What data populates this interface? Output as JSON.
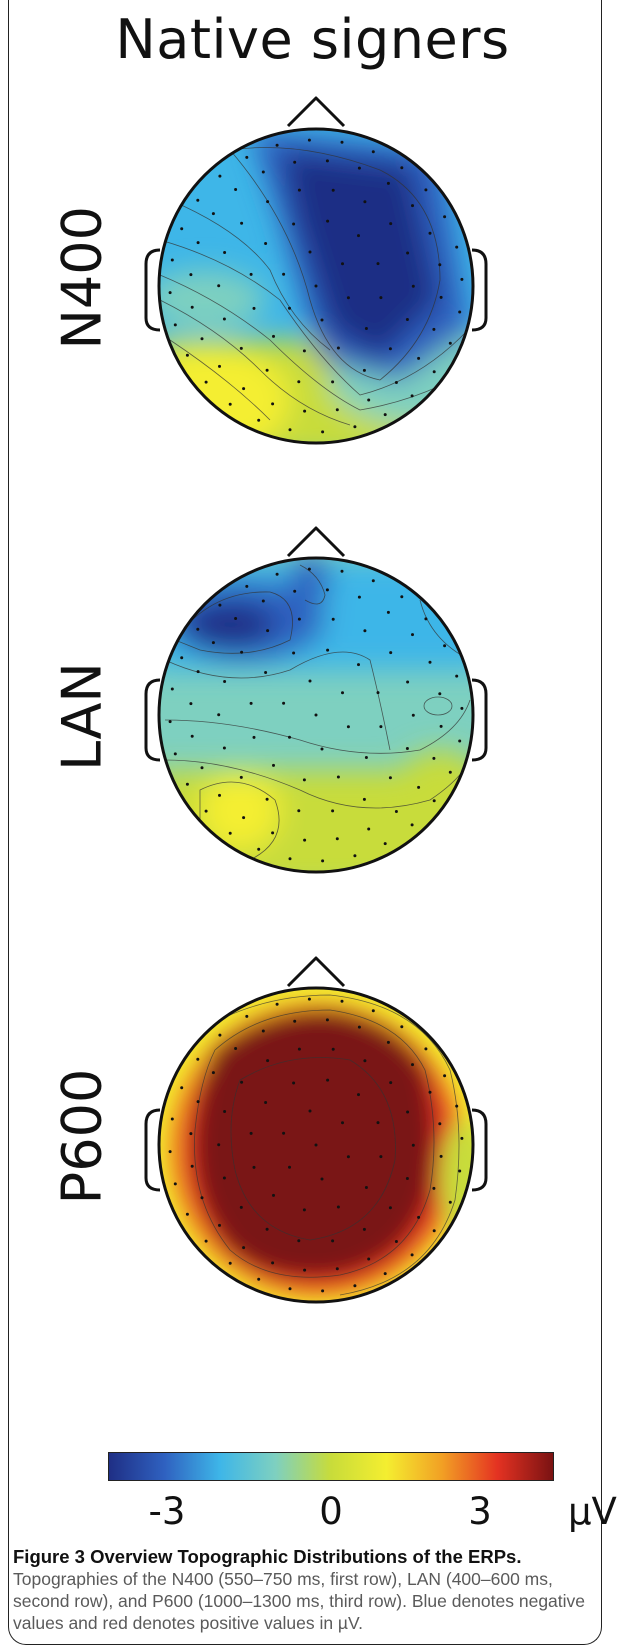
{
  "figure": {
    "panel_title": "Native signers",
    "rows": [
      {
        "label": "N400",
        "pattern": "fronto-central negativity"
      },
      {
        "label": "LAN",
        "pattern": "left-anterior negativity"
      },
      {
        "label": "P600",
        "pattern": "broad central positivity"
      }
    ],
    "colorbar": {
      "ticks": [
        "-3",
        "0",
        "3"
      ],
      "unit": "µV",
      "colors": [
        "#1f2f85",
        "#2f61c0",
        "#3eb6e8",
        "#7ed0c0",
        "#c8dc3a",
        "#f4ee30",
        "#f2a024",
        "#e43222",
        "#7a1212"
      ]
    }
  },
  "caption": {
    "title": "Figure 3 Overview Topographic Distributions of the ERPs.",
    "text": "Topographies of the N400 (550–750 ms, first row), LAN (400–600 ms, second row), and P600 (1000–1300 ms, third row). Blue denotes negative values and red denotes positive values in µV."
  }
}
